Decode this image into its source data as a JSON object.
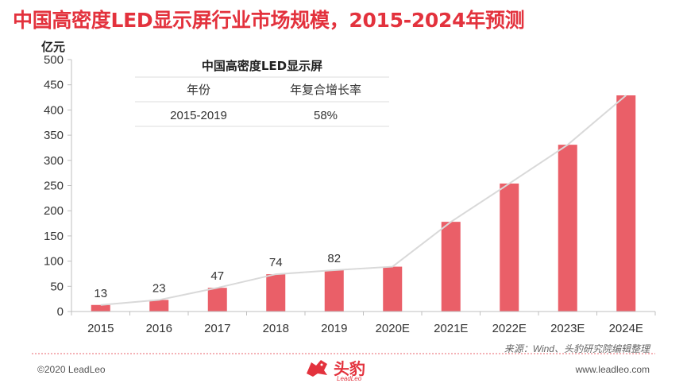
{
  "title": "中国高密度LED显示屏行业市场规模，2015-2024年预测",
  "colors": {
    "accent": "#e3323d",
    "bar": "#ea5f68",
    "trend": "#d9d9d9"
  },
  "chart_data": {
    "type": "bar",
    "unit_label": "亿元",
    "categories": [
      "2015",
      "2016",
      "2017",
      "2018",
      "2019",
      "2020E",
      "2021E",
      "2022E",
      "2023E",
      "2024E"
    ],
    "values": [
      13,
      23,
      47,
      74,
      82,
      89,
      178,
      254,
      331,
      429
    ],
    "data_labels": [
      "13",
      "23",
      "47",
      "74",
      "82",
      "",
      "",
      "",
      "",
      ""
    ],
    "yticks": [
      0,
      50,
      100,
      150,
      200,
      250,
      300,
      350,
      400,
      450,
      500
    ],
    "ylim": [
      0,
      500
    ],
    "trend_line": true,
    "grid": false
  },
  "inset_table": {
    "title": "中国高密度LED显示屏",
    "headers": [
      "年份",
      "年复合增长率"
    ],
    "rows": [
      [
        "2015-2019",
        "58%"
      ]
    ]
  },
  "source": "来源：Wind、头豹研究院编辑整理",
  "footer": {
    "copyright": "©2020 LeadLeo",
    "website": "www.leadleo.com",
    "logo_text": "头豹",
    "logo_sub": "LeadLeo"
  }
}
